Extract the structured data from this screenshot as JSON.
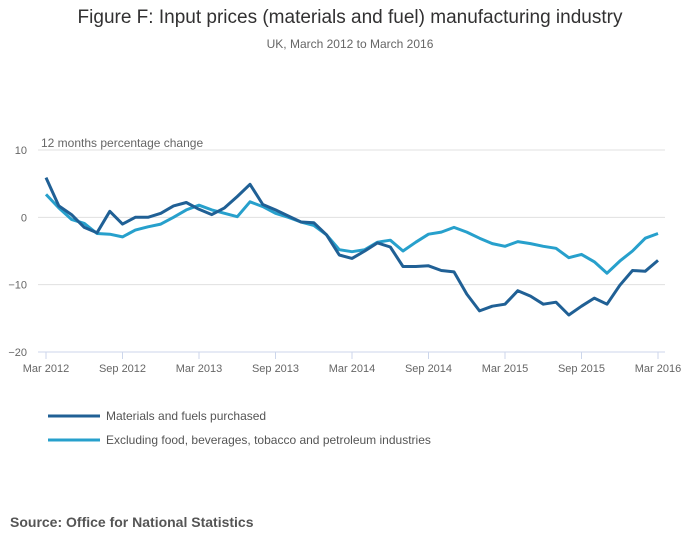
{
  "title": "Figure F: Input prices (materials and fuel) manufacturing industry",
  "subtitle": "UK, March 2012 to March 2016",
  "source": "Source: Office for National Statistics",
  "chart_data": {
    "type": "line",
    "title": "Figure F: Input prices (materials and fuel) manufacturing industry",
    "ylabel": "12 months percentage change",
    "xlabel": "",
    "ylim": [
      -20,
      10
    ],
    "yticks": [
      10,
      0,
      -10,
      -20
    ],
    "ytick_labels": [
      "10",
      "0",
      "−10",
      "−20"
    ],
    "xtick_labels": [
      "Mar 2012",
      "Sep 2012",
      "Mar 2013",
      "Sep 2013",
      "Mar 2014",
      "Sep 2014",
      "Mar 2015",
      "Sep 2015",
      "Mar 2016"
    ],
    "xtick_index": [
      0,
      6,
      12,
      18,
      24,
      30,
      36,
      42,
      48
    ],
    "grid": true,
    "legend_position": "bottom-left",
    "x_start": "Mar 2012",
    "x_frequency": "monthly",
    "series": [
      {
        "name": "Materials and fuels purchased",
        "color": "#206095",
        "values": [
          5.9,
          1.7,
          0.4,
          -1.5,
          -2.3,
          0.9,
          -1.0,
          0.0,
          0.0,
          0.6,
          1.7,
          2.2,
          1.2,
          0.4,
          1.4,
          3.1,
          4.9,
          1.9,
          1.1,
          0.2,
          -0.7,
          -0.8,
          -2.6,
          -5.6,
          -6.1,
          -5.0,
          -3.8,
          -4.4,
          -7.3,
          -7.3,
          -7.2,
          -7.9,
          -8.1,
          -11.4,
          -13.9,
          -13.2,
          -12.9,
          -10.9,
          -11.7,
          -12.9,
          -12.6,
          -14.5,
          -13.2,
          -12.0,
          -12.9,
          -10.1,
          -7.9,
          -8.0,
          -6.4
        ]
      },
      {
        "name": "Excluding food, beverages, tobacco and petroleum industries",
        "color": "#27a0cc",
        "values": [
          3.4,
          1.4,
          -0.3,
          -0.9,
          -2.4,
          -2.5,
          -2.9,
          -1.9,
          -1.4,
          -1.0,
          0.0,
          1.1,
          1.8,
          1.1,
          0.6,
          0.1,
          2.3,
          1.6,
          0.6,
          0.0,
          -0.7,
          -1.2,
          -2.6,
          -4.8,
          -5.1,
          -4.8,
          -3.7,
          -3.4,
          -5.0,
          -3.7,
          -2.5,
          -2.2,
          -1.5,
          -2.2,
          -3.1,
          -3.9,
          -4.3,
          -3.6,
          -3.9,
          -4.3,
          -4.6,
          -6.0,
          -5.5,
          -6.6,
          -8.3,
          -6.5,
          -5.0,
          -3.1,
          -2.4
        ]
      }
    ]
  }
}
